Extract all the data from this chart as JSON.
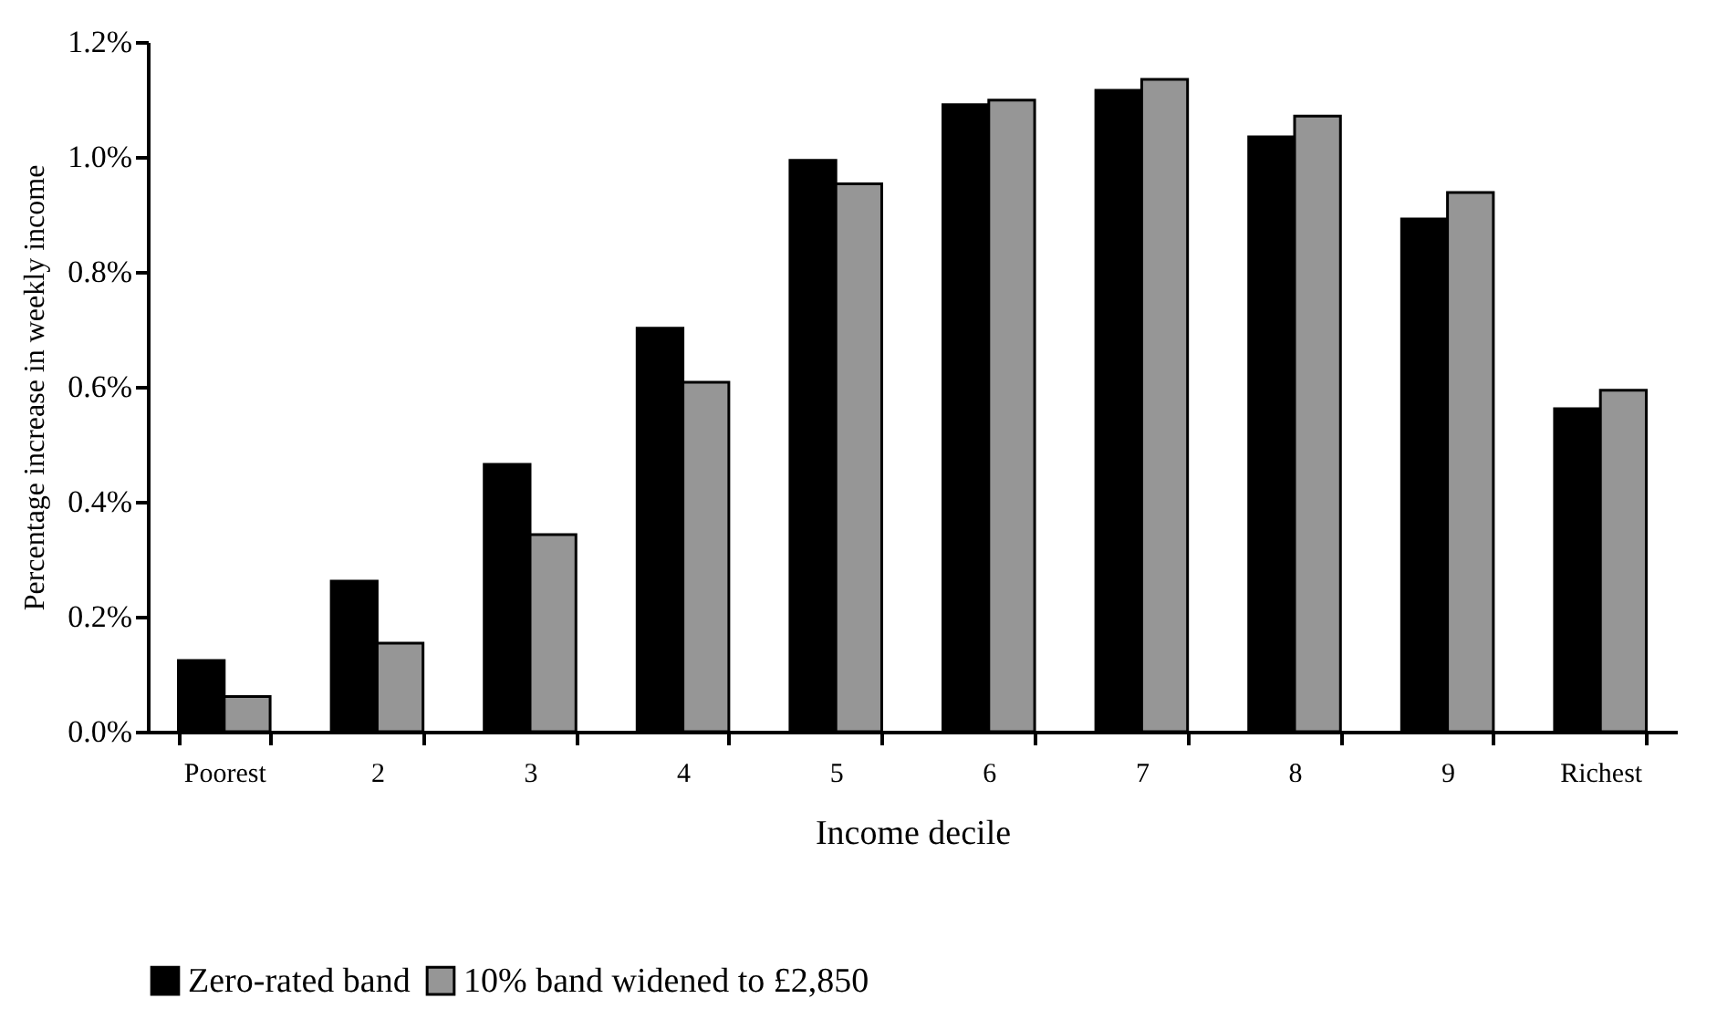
{
  "chart_data": {
    "type": "bar",
    "xlabel": "Income decile",
    "ylabel": "Percentage increase in weekly income",
    "categories": [
      "Poorest",
      "2",
      "3",
      "4",
      "5",
      "6",
      "7",
      "8",
      "9",
      "Richest"
    ],
    "series": [
      {
        "name": "Zero-rated band",
        "color": "#000000",
        "values": [
          0.124,
          0.262,
          0.465,
          0.702,
          0.994,
          1.091,
          1.116,
          1.035,
          0.892,
          0.562
        ]
      },
      {
        "name": "10% band widened to £2,850",
        "color": "#969696",
        "values": [
          0.061,
          0.154,
          0.343,
          0.608,
          0.953,
          1.099,
          1.135,
          1.071,
          0.938,
          0.594
        ]
      }
    ],
    "ylim": [
      0,
      1.2
    ],
    "yticks": [
      {
        "value": 0,
        "label": "0.0%"
      },
      {
        "value": 0.2,
        "label": "0.2%"
      },
      {
        "value": 0.4,
        "label": "0.4%"
      },
      {
        "value": 0.6,
        "label": "0.6%"
      },
      {
        "value": 0.8,
        "label": "0.8%"
      },
      {
        "value": 1.0,
        "label": "1.0%"
      },
      {
        "value": 1.2,
        "label": "1.2%"
      }
    ],
    "grid": false,
    "legend": "bottom"
  }
}
